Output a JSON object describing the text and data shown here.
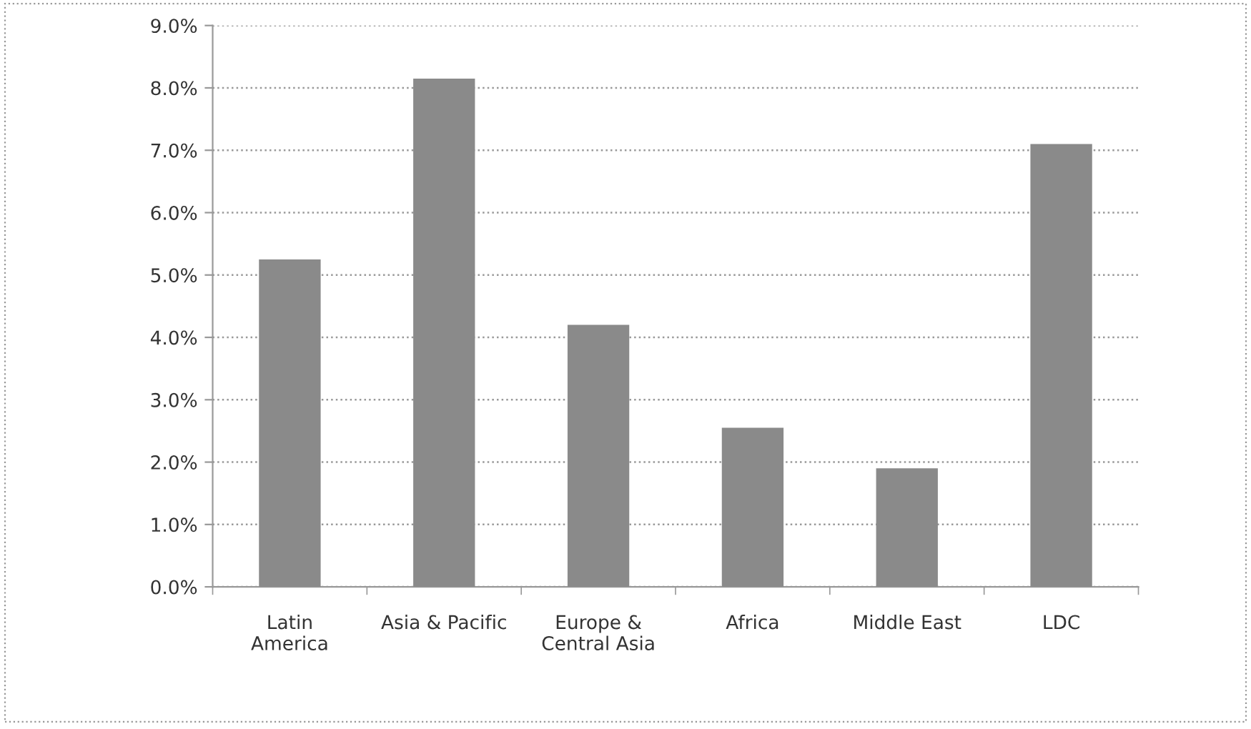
{
  "chart_data": {
    "type": "bar",
    "categories": [
      "Latin\nAmerica",
      "Asia & Pacific",
      "Europe &\nCentral Asia",
      "Africa",
      "Middle East",
      "LDC"
    ],
    "values": [
      5.25,
      8.15,
      4.2,
      2.55,
      1.9,
      7.1
    ],
    "color": "#8a8a8a",
    "ylim": [
      0,
      9
    ],
    "yticks": [
      {
        "value": 0,
        "label": "0.0%"
      },
      {
        "value": 1,
        "label": "1.0%"
      },
      {
        "value": 2,
        "label": "2.0%"
      },
      {
        "value": 3,
        "label": "3.0%"
      },
      {
        "value": 4,
        "label": "4.0%"
      },
      {
        "value": 5,
        "label": "5.0%"
      },
      {
        "value": 6,
        "label": "6.0%"
      },
      {
        "value": 7,
        "label": "7.0%"
      },
      {
        "value": 8,
        "label": "8.0%"
      },
      {
        "value": 9,
        "label": "9.0%"
      }
    ],
    "grid": "y"
  }
}
